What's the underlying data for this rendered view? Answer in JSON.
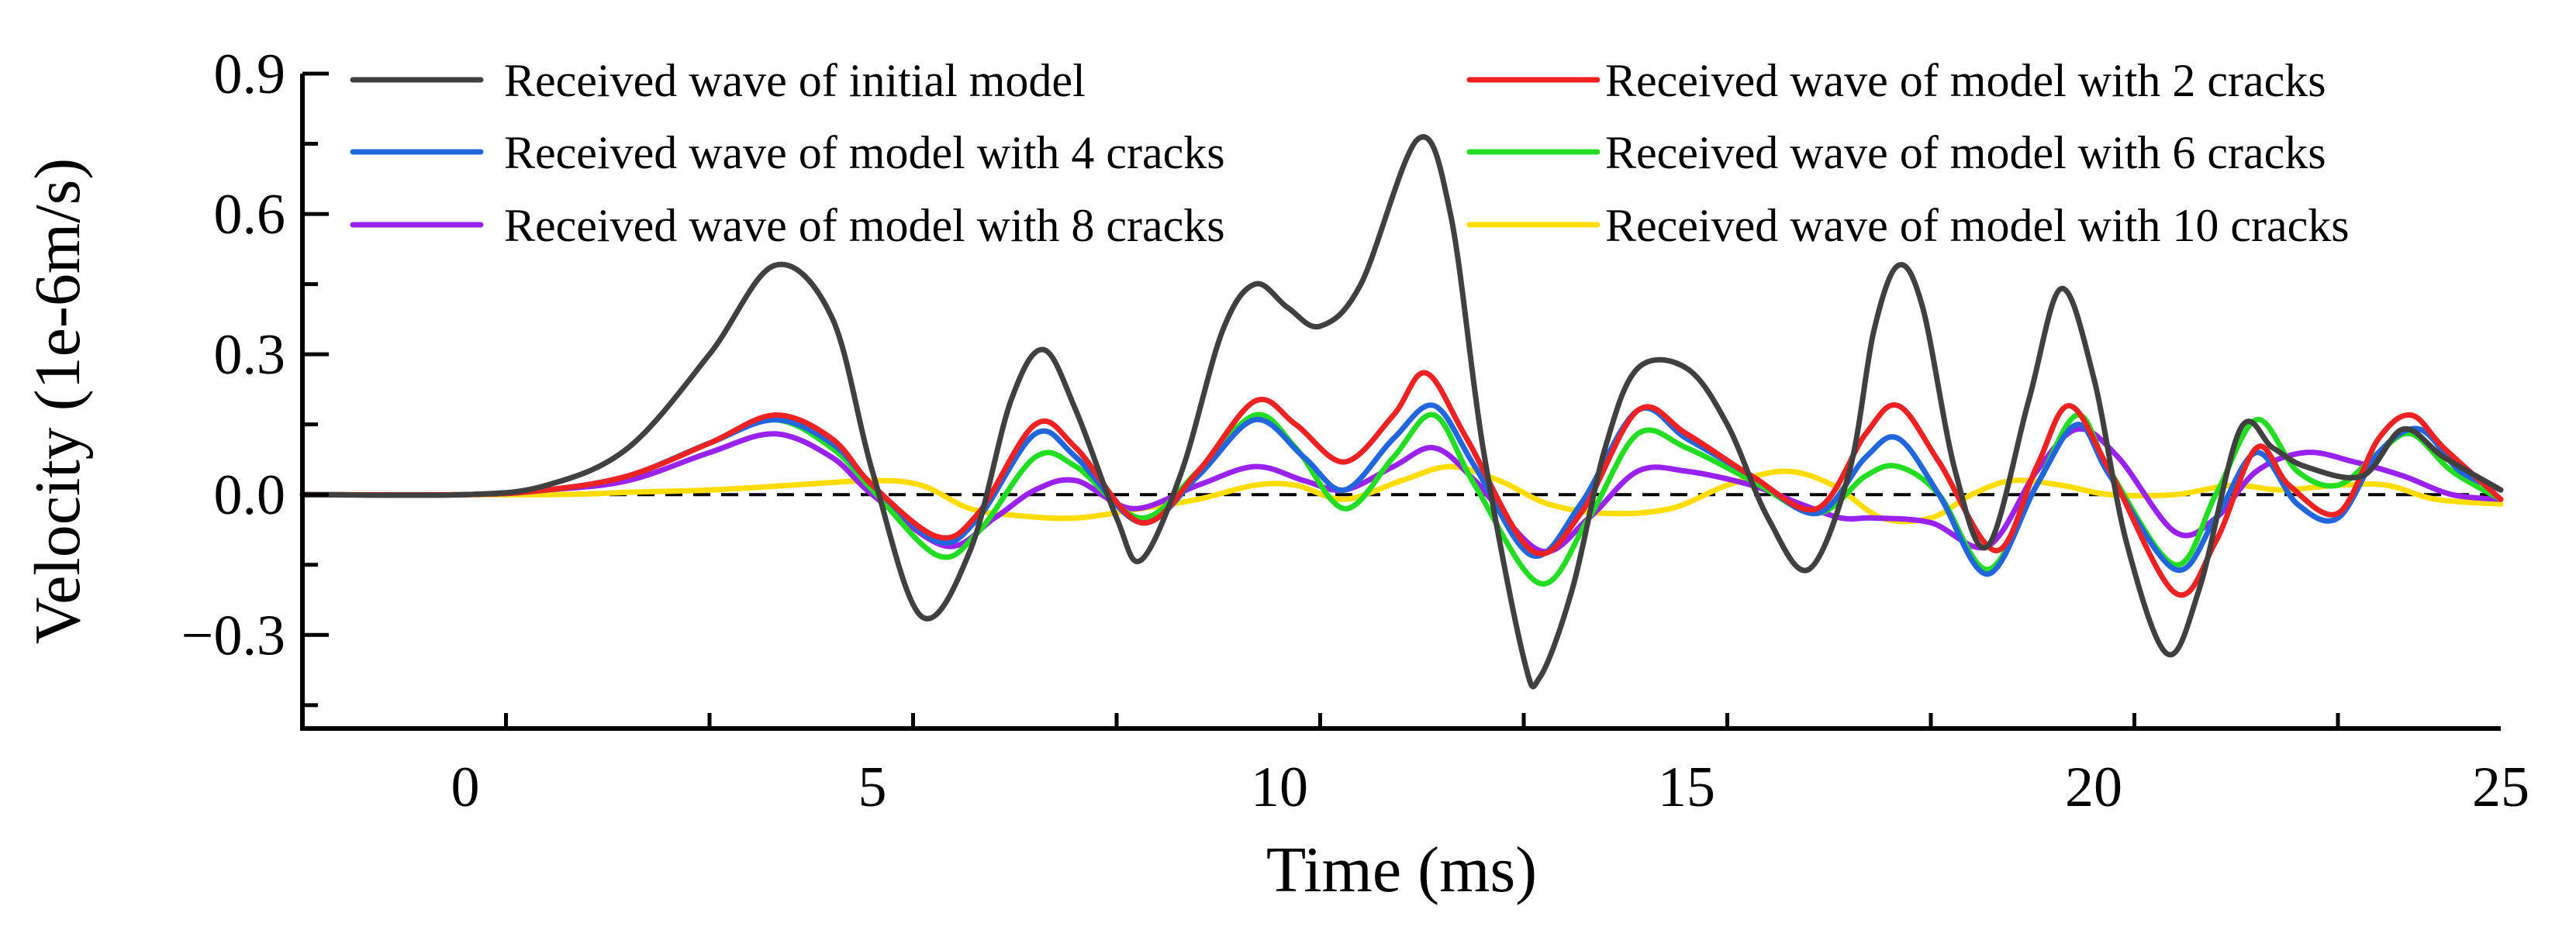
{
  "chart_data": {
    "type": "line",
    "title": "",
    "xlabel": "Time (ms)",
    "ylabel": "Velocity (1e-6m/s)",
    "xlim": [
      -2,
      25
    ],
    "ylim": [
      -0.5,
      0.9
    ],
    "xticks": [
      0,
      5,
      10,
      15,
      20,
      25
    ],
    "xtick_labels": [
      "0",
      "5",
      "10",
      "15",
      "20",
      "25"
    ],
    "yticks": [
      -0.3,
      0.0,
      0.3,
      0.6,
      0.9
    ],
    "ytick_labels": [
      "−0.3",
      "0.0",
      "0.3",
      "0.6",
      "0.9"
    ],
    "zero_line": "dashed",
    "grid": false,
    "legend_position": "top, two columns",
    "series": [
      {
        "name": "Received wave of initial model",
        "color": "#404040",
        "points": [
          [
            -2,
            0
          ],
          [
            0,
            0
          ],
          [
            1,
            0.02
          ],
          [
            2,
            0.1
          ],
          [
            3,
            0.3
          ],
          [
            3.8,
            0.49
          ],
          [
            4.5,
            0.38
          ],
          [
            5,
            0.05
          ],
          [
            5.6,
            -0.26
          ],
          [
            6.2,
            -0.12
          ],
          [
            6.7,
            0.2
          ],
          [
            7.1,
            0.31
          ],
          [
            7.5,
            0.18
          ],
          [
            8,
            -0.05
          ],
          [
            8.3,
            -0.14
          ],
          [
            8.8,
            0.05
          ],
          [
            9.3,
            0.35
          ],
          [
            9.7,
            0.45
          ],
          [
            10.1,
            0.4
          ],
          [
            10.5,
            0.36
          ],
          [
            11,
            0.45
          ],
          [
            11.7,
            0.76
          ],
          [
            12.1,
            0.6
          ],
          [
            12.5,
            0.1
          ],
          [
            13,
            -0.35
          ],
          [
            13.2,
            -0.39
          ],
          [
            13.6,
            -0.2
          ],
          [
            14,
            0.1
          ],
          [
            14.4,
            0.27
          ],
          [
            15,
            0.27
          ],
          [
            15.5,
            0.15
          ],
          [
            16,
            -0.05
          ],
          [
            16.5,
            -0.16
          ],
          [
            17,
            0.05
          ],
          [
            17.3,
            0.35
          ],
          [
            17.6,
            0.49
          ],
          [
            17.9,
            0.4
          ],
          [
            18.3,
            0.05
          ],
          [
            18.7,
            -0.11
          ],
          [
            19.2,
            0.2
          ],
          [
            19.6,
            0.44
          ],
          [
            20,
            0.25
          ],
          [
            20.4,
            -0.1
          ],
          [
            20.9,
            -0.34
          ],
          [
            21.3,
            -0.2
          ],
          [
            21.8,
            0.14
          ],
          [
            22.2,
            0.1
          ],
          [
            22.6,
            0.06
          ],
          [
            23.3,
            0.04
          ],
          [
            23.8,
            0.14
          ],
          [
            24.3,
            0.08
          ],
          [
            25,
            0.01
          ]
        ]
      },
      {
        "name": "Received wave of model with 2 cracks",
        "color": "#ee2222",
        "points": [
          [
            -2,
            0
          ],
          [
            0,
            0
          ],
          [
            1,
            0.01
          ],
          [
            2,
            0.04
          ],
          [
            3,
            0.11
          ],
          [
            3.8,
            0.17
          ],
          [
            4.5,
            0.12
          ],
          [
            5,
            0.02
          ],
          [
            5.8,
            -0.09
          ],
          [
            6.3,
            -0.04
          ],
          [
            7,
            0.15
          ],
          [
            7.5,
            0.1
          ],
          [
            8.3,
            -0.06
          ],
          [
            9,
            0.05
          ],
          [
            9.7,
            0.2
          ],
          [
            10.2,
            0.15
          ],
          [
            10.8,
            0.07
          ],
          [
            11.4,
            0.17
          ],
          [
            11.8,
            0.26
          ],
          [
            12.3,
            0.12
          ],
          [
            13.1,
            -0.12
          ],
          [
            13.7,
            -0.04
          ],
          [
            14.4,
            0.18
          ],
          [
            15,
            0.13
          ],
          [
            15.8,
            0.04
          ],
          [
            16.6,
            -0.03
          ],
          [
            17.2,
            0.13
          ],
          [
            17.6,
            0.19
          ],
          [
            18.1,
            0.07
          ],
          [
            18.8,
            -0.12
          ],
          [
            19.3,
            0.06
          ],
          [
            19.7,
            0.19
          ],
          [
            20.2,
            0.05
          ],
          [
            21,
            -0.21
          ],
          [
            21.5,
            -0.1
          ],
          [
            22,
            0.1
          ],
          [
            22.4,
            0.02
          ],
          [
            23,
            -0.04
          ],
          [
            23.5,
            0.12
          ],
          [
            23.9,
            0.17
          ],
          [
            24.3,
            0.1
          ],
          [
            25,
            -0.01
          ]
        ]
      },
      {
        "name": "Received wave of model with 4 cracks",
        "color": "#2266dd",
        "points": [
          [
            -2,
            0
          ],
          [
            0,
            0
          ],
          [
            1,
            0.01
          ],
          [
            2,
            0.04
          ],
          [
            3,
            0.11
          ],
          [
            3.8,
            0.16
          ],
          [
            4.5,
            0.11
          ],
          [
            5,
            0.02
          ],
          [
            5.8,
            -0.1
          ],
          [
            6.3,
            -0.05
          ],
          [
            7,
            0.13
          ],
          [
            7.5,
            0.08
          ],
          [
            8.3,
            -0.06
          ],
          [
            9,
            0.04
          ],
          [
            9.7,
            0.16
          ],
          [
            10.3,
            0.08
          ],
          [
            10.8,
            0.01
          ],
          [
            11.4,
            0.12
          ],
          [
            11.9,
            0.19
          ],
          [
            12.4,
            0.06
          ],
          [
            13.1,
            -0.13
          ],
          [
            13.7,
            -0.02
          ],
          [
            14.4,
            0.18
          ],
          [
            15,
            0.12
          ],
          [
            15.8,
            0.04
          ],
          [
            16.6,
            -0.04
          ],
          [
            17.2,
            0.08
          ],
          [
            17.6,
            0.12
          ],
          [
            18.1,
            0
          ],
          [
            18.7,
            -0.17
          ],
          [
            19.3,
            0.02
          ],
          [
            19.8,
            0.15
          ],
          [
            20.2,
            0.04
          ],
          [
            21,
            -0.16
          ],
          [
            21.5,
            -0.05
          ],
          [
            22,
            0.09
          ],
          [
            22.5,
            -0.02
          ],
          [
            23,
            -0.05
          ],
          [
            23.5,
            0.09
          ],
          [
            24,
            0.14
          ],
          [
            24.5,
            0.05
          ],
          [
            25,
            0.01
          ]
        ]
      },
      {
        "name": "Received wave of model with 6 cracks",
        "color": "#22dd22",
        "points": [
          [
            -2,
            0
          ],
          [
            0,
            0
          ],
          [
            1,
            0.01
          ],
          [
            2,
            0.04
          ],
          [
            3,
            0.11
          ],
          [
            3.8,
            0.16
          ],
          [
            4.5,
            0.1
          ],
          [
            5,
            0.01
          ],
          [
            5.8,
            -0.13
          ],
          [
            6.3,
            -0.08
          ],
          [
            7,
            0.08
          ],
          [
            7.5,
            0.06
          ],
          [
            8.3,
            -0.05
          ],
          [
            9,
            0.05
          ],
          [
            9.7,
            0.17
          ],
          [
            10.2,
            0.1
          ],
          [
            10.8,
            -0.03
          ],
          [
            11.4,
            0.08
          ],
          [
            11.9,
            0.17
          ],
          [
            12.4,
            0.02
          ],
          [
            13.2,
            -0.19
          ],
          [
            13.8,
            -0.05
          ],
          [
            14.4,
            0.13
          ],
          [
            15,
            0.1
          ],
          [
            15.8,
            0.03
          ],
          [
            16.6,
            -0.04
          ],
          [
            17.2,
            0.04
          ],
          [
            17.6,
            0.06
          ],
          [
            18.1,
            0
          ],
          [
            18.7,
            -0.16
          ],
          [
            19.3,
            0.02
          ],
          [
            19.8,
            0.17
          ],
          [
            20.2,
            0.05
          ],
          [
            21,
            -0.15
          ],
          [
            21.5,
            0
          ],
          [
            22,
            0.16
          ],
          [
            22.5,
            0.05
          ],
          [
            23,
            0.02
          ],
          [
            23.5,
            0.09
          ],
          [
            23.9,
            0.13
          ],
          [
            24.4,
            0.05
          ],
          [
            25,
            -0.01
          ]
        ]
      },
      {
        "name": "Received wave of model with 8 cracks",
        "color": "#9922ee",
        "points": [
          [
            -2,
            0
          ],
          [
            0,
            0
          ],
          [
            1,
            0.01
          ],
          [
            2,
            0.03
          ],
          [
            3,
            0.09
          ],
          [
            3.8,
            0.13
          ],
          [
            4.5,
            0.08
          ],
          [
            5,
            0
          ],
          [
            5.9,
            -0.11
          ],
          [
            6.5,
            -0.05
          ],
          [
            7,
            0.01
          ],
          [
            7.5,
            0.03
          ],
          [
            8.2,
            -0.03
          ],
          [
            9,
            0.02
          ],
          [
            9.7,
            0.06
          ],
          [
            10.3,
            0.03
          ],
          [
            10.8,
            0.01
          ],
          [
            11.4,
            0.06
          ],
          [
            11.9,
            0.1
          ],
          [
            12.4,
            0.03
          ],
          [
            13.2,
            -0.12
          ],
          [
            13.8,
            -0.05
          ],
          [
            14.4,
            0.05
          ],
          [
            15,
            0.05
          ],
          [
            15.8,
            0.02
          ],
          [
            16.4,
            -0.02
          ],
          [
            16.9,
            -0.05
          ],
          [
            17.3,
            -0.05
          ],
          [
            18,
            -0.06
          ],
          [
            18.7,
            -0.11
          ],
          [
            19.3,
            0.05
          ],
          [
            19.8,
            0.14
          ],
          [
            20.3,
            0.08
          ],
          [
            21,
            -0.08
          ],
          [
            21.5,
            -0.05
          ],
          [
            22,
            0.05
          ],
          [
            22.6,
            0.09
          ],
          [
            23.2,
            0.07
          ],
          [
            23.8,
            0.04
          ],
          [
            24.4,
            0
          ],
          [
            25,
            -0.01
          ]
        ]
      },
      {
        "name": "Received wave of model with 10 cracks",
        "color": "#ffdd00",
        "points": [
          [
            -2,
            0
          ],
          [
            1,
            0
          ],
          [
            2,
            0.005
          ],
          [
            3,
            0.01
          ],
          [
            4,
            0.02
          ],
          [
            5,
            0.03
          ],
          [
            5.6,
            0.02
          ],
          [
            6.2,
            -0.03
          ],
          [
            6.8,
            -0.045
          ],
          [
            7.5,
            -0.05
          ],
          [
            8.3,
            -0.03
          ],
          [
            9,
            -0.01
          ],
          [
            9.7,
            0.02
          ],
          [
            10.2,
            0.02
          ],
          [
            10.8,
            -0.01
          ],
          [
            11.5,
            0.03
          ],
          [
            12.1,
            0.06
          ],
          [
            12.7,
            0.03
          ],
          [
            13.3,
            -0.02
          ],
          [
            14,
            -0.04
          ],
          [
            14.8,
            -0.03
          ],
          [
            15.5,
            0.02
          ],
          [
            16.2,
            0.05
          ],
          [
            16.8,
            0.02
          ],
          [
            17.4,
            -0.05
          ],
          [
            18,
            -0.05
          ],
          [
            18.5,
            0
          ],
          [
            19,
            0.03
          ],
          [
            19.6,
            0.02
          ],
          [
            20.2,
            0
          ],
          [
            21,
            0
          ],
          [
            21.7,
            0.02
          ],
          [
            22.3,
            0.01
          ],
          [
            23,
            0.02
          ],
          [
            23.6,
            0.02
          ],
          [
            24.2,
            -0.01
          ],
          [
            25,
            -0.02
          ]
        ]
      }
    ]
  }
}
